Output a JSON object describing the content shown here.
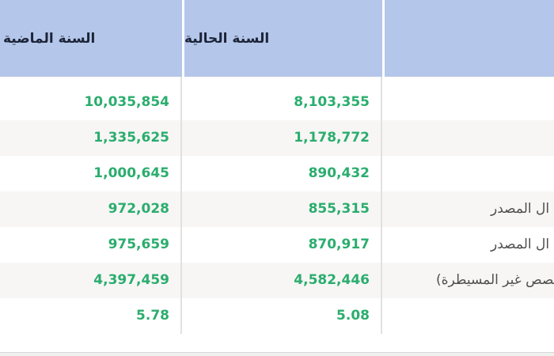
{
  "table": {
    "header": {
      "previous_year": "السنة الماضية",
      "current_year": "السنة الحالية",
      "label_column": ""
    },
    "rows": [
      {
        "previous": "10,035,854",
        "current": "8,103,355",
        "label": ""
      },
      {
        "previous": "1,335,625",
        "current": "1,178,772",
        "label": ""
      },
      {
        "previous": "1,000,645",
        "current": "890,432",
        "label": ""
      },
      {
        "previous": "972,028",
        "current": "855,315",
        "label": "ال المصدر"
      },
      {
        "previous": "975,659",
        "current": "870,917",
        "label": "ال المصدر"
      },
      {
        "previous": "4,397,459",
        "current": "4,582,446",
        "label": "ـصص غير المسيطرة)"
      },
      {
        "previous": "5.78",
        "current": "5.08",
        "label": ""
      }
    ],
    "colors": {
      "header_bg": "#b4c6e9",
      "header_text": "#1c2438",
      "value_text": "#2bad6e",
      "row_alt_bg": "#f7f6f5",
      "label_text": "#4f4f4f",
      "divider": "#e2e1e1",
      "bottom_band_bg": "#f1f0f1"
    }
  }
}
